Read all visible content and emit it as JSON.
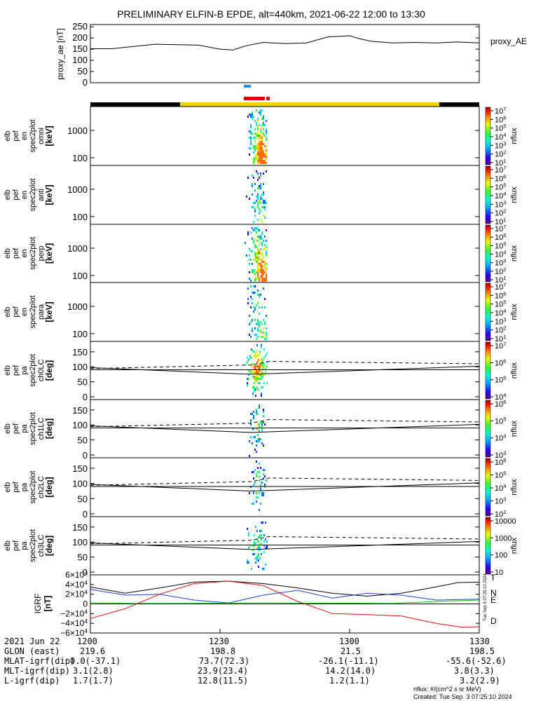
{
  "title": "PRELIMINARY ELFIN-B EPDE, alt=440km, 2021-06-22 12:00 to 13:30",
  "colors": {
    "night_bar": "#000000",
    "day_bar": "#f2d200",
    "science_marker_blue": "#1e90ff",
    "science_marker_red": "#e00000",
    "igrf_T": "#000000",
    "igrf_N": "#1f3fd0",
    "igrf_E": "#10c010",
    "igrf_D": "#e01010"
  },
  "chart_data": [
    {
      "type": "line",
      "panel": "proxy_ae",
      "ylabel": "proxy_ae [nT]",
      "legend": "proxy_AE",
      "yticks": [
        "250",
        "200",
        "150",
        "100",
        "50",
        "0"
      ],
      "ylim": [
        0,
        260
      ],
      "x_minutes": [
        0,
        5,
        10,
        15,
        20,
        25,
        30,
        33,
        36,
        40,
        45,
        50,
        55,
        60,
        62,
        65,
        70,
        75,
        80,
        85,
        90
      ],
      "values": [
        152,
        152,
        162,
        172,
        170,
        168,
        150,
        146,
        165,
        180,
        175,
        178,
        205,
        210,
        198,
        185,
        178,
        180,
        178,
        182,
        178
      ]
    },
    {
      "type": "heatmap",
      "panel": "en_spec2plot_omni",
      "ylabel": "elb pef en spec2plot omni [keV]",
      "yticks": [
        "1000",
        "100"
      ],
      "colorbar_label": "nflux",
      "colorbar_ticks": [
        "10^7",
        "10^6",
        "10^5",
        "10^4",
        "10^3",
        "10^2",
        "10^1"
      ]
    },
    {
      "type": "heatmap",
      "panel": "en_spec2plot_anti",
      "ylabel": "elb pef en spec2plot anti [keV]",
      "yticks": [
        "1000",
        "100"
      ],
      "colorbar_label": "nflux",
      "colorbar_ticks": [
        "10^7",
        "10^6",
        "10^5",
        "10^4",
        "10^3",
        "10^2",
        "10^1"
      ]
    },
    {
      "type": "heatmap",
      "panel": "en_spec2plot_perp",
      "ylabel": "elb pef en spec2plot perp [keV]",
      "yticks": [
        "1000",
        "100"
      ],
      "colorbar_label": "nflux",
      "colorbar_ticks": [
        "10^7",
        "10^6",
        "10^5",
        "10^4",
        "10^3",
        "10^2",
        "10^1"
      ]
    },
    {
      "type": "heatmap",
      "panel": "en_spec2plot_para",
      "ylabel": "elb pef en spec2plot para [keV]",
      "yticks": [
        "1000",
        "100"
      ],
      "colorbar_label": "nflux",
      "colorbar_ticks": [
        "10^7",
        "10^6",
        "10^5",
        "10^4",
        "10^3",
        "10^2",
        "10^1"
      ]
    },
    {
      "type": "heatmap",
      "panel": "pa_spec2plot_ch0LC",
      "ylabel": "elb pef pa spec2plot ch0LC [deg]",
      "yticks": [
        "150",
        "100",
        "50",
        "0"
      ],
      "colorbar_label": "nflux",
      "colorbar_ticks": [
        "10^7",
        "10^6",
        "10^5",
        "10^4"
      ]
    },
    {
      "type": "heatmap",
      "panel": "pa_spec2plot_ch1LC",
      "ylabel": "elb pef pa spec2plot ch1LC [deg]",
      "yticks": [
        "150",
        "100",
        "50",
        "0"
      ],
      "colorbar_label": "nflux",
      "colorbar_ticks": [
        "10^6",
        "10^5",
        "10^4",
        "10^3"
      ]
    },
    {
      "type": "heatmap",
      "panel": "pa_spec2plot_ch2LC",
      "ylabel": "elb pef pa spec2plot ch2LC [deg]",
      "yticks": [
        "150",
        "100",
        "50",
        "0"
      ],
      "colorbar_label": "nflux",
      "colorbar_ticks": [
        "10^6",
        "10^5",
        "10^4",
        "10^3",
        "10^2"
      ]
    },
    {
      "type": "heatmap",
      "panel": "pa_spec2plot_ch3LC",
      "ylabel": "elb pef pa spec2plot ch3LC [deg]",
      "yticks": [
        "150",
        "100",
        "50",
        "0"
      ],
      "colorbar_label": "nflux",
      "colorbar_ticks": [
        "10000",
        "1000",
        "100",
        "10"
      ]
    },
    {
      "type": "line",
      "panel": "igrf",
      "ylabel": "IGRF [nT]",
      "yticks": [
        "6×10^4",
        "4×10^4",
        "2×10^4",
        "0",
        "−2×10^4",
        "−4×10^4",
        "−6×10^4"
      ],
      "ylim": [
        -60000,
        60000
      ],
      "series": [
        {
          "name": "T",
          "x_minutes": [
            0,
            8,
            16,
            24,
            32,
            40,
            48,
            56,
            64,
            72,
            80,
            85,
            90
          ],
          "values": [
            35000,
            22000,
            33000,
            45000,
            47000,
            42000,
            33000,
            22000,
            16000,
            22000,
            35000,
            44000,
            45000
          ]
        },
        {
          "name": "N",
          "x_minutes": [
            0,
            8,
            16,
            24,
            32,
            40,
            48,
            56,
            64,
            72,
            80,
            90
          ],
          "values": [
            30000,
            18000,
            20000,
            8000,
            2000,
            18000,
            28000,
            12000,
            22000,
            18000,
            8000,
            10000
          ]
        },
        {
          "name": "E",
          "x_minutes": [
            0,
            10,
            20,
            30,
            40,
            50,
            60,
            70,
            80,
            90
          ],
          "values": [
            2000,
            1000,
            1000,
            1500,
            2000,
            1500,
            1500,
            1000,
            5000,
            8000
          ]
        },
        {
          "name": "D",
          "x_minutes": [
            0,
            8,
            16,
            24,
            32,
            40,
            48,
            56,
            64,
            72,
            80,
            86,
            90
          ],
          "values": [
            -30000,
            -10000,
            20000,
            42000,
            47000,
            38000,
            5000,
            -20000,
            -22000,
            -25000,
            -40000,
            -48000,
            -47000
          ]
        }
      ],
      "vertical_note": "Tue Sep  3 07:25:10 2024"
    }
  ],
  "footer": {
    "date_label": "2021 Jun 22",
    "time_ticks": [
      "1200",
      "1230",
      "1300",
      "1330"
    ],
    "rows": [
      {
        "label": "GLON (east)",
        "values": [
          "219.6",
          "198.8",
          "21.5",
          "198.5"
        ]
      },
      {
        "label": "MLAT-igrf(dip)",
        "values": [
          "0.0(-37.1)",
          "73.7(72.3)",
          "-26.1(-11.1)",
          "-55.6(-52.6)"
        ]
      },
      {
        "label": "MLT-igrf(dip)",
        "values": [
          "3.1(2.8)",
          "23.9(23.4)",
          "14.2(14.0)",
          "3.8(3.3)"
        ]
      },
      {
        "label": "L-igrf(dip)",
        "values": [
          "1.7(1.7)",
          "12.8(11.5)",
          "1.2(1.1)",
          "3.2(2.9)"
        ]
      }
    ],
    "units_note": "nflux: #/(cm^2 s sr MeV)",
    "created_note": "Created: Tue Sep  3 07:25:10 2024"
  }
}
